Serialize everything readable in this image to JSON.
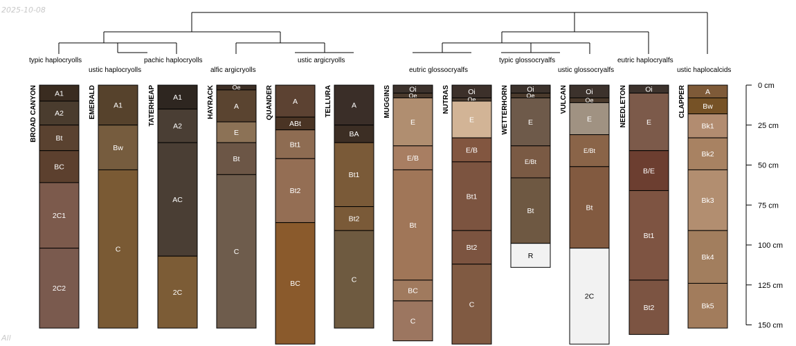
{
  "date_stamp": "2025-10-08",
  "footer_label": "All",
  "depth_axis": {
    "unit": "cm",
    "ticks": [
      0,
      25,
      50,
      75,
      100,
      125,
      150
    ],
    "tick_labels": [
      "0 cm",
      "25 cm",
      "50 cm",
      "75 cm",
      "100 cm",
      "125 cm",
      "150 cm"
    ]
  },
  "taxa": [
    "typic haplocryolls",
    "ustic haplocryolls",
    "pachic haplocryolls",
    "alfic argicryolls",
    "ustic argicryolls",
    "eutric glossocryalfs",
    "typic glossocryalfs",
    "ustic glossocryalfs",
    "eutric haplocryalfs",
    "ustic haplocalcids"
  ],
  "profiles": [
    {
      "name": "BROAD CANYON",
      "horizons": [
        {
          "name": "A1",
          "top": 0,
          "bottom": 10,
          "color": "#3a2c20"
        },
        {
          "name": "A2",
          "top": 10,
          "bottom": 25,
          "color": "#4a3c2e"
        },
        {
          "name": "Bt",
          "top": 25,
          "bottom": 41,
          "color": "#5a4230"
        },
        {
          "name": "BC",
          "top": 41,
          "bottom": 61,
          "color": "#5c402e"
        },
        {
          "name": "2C1",
          "top": 61,
          "bottom": 102,
          "color": "#7c5a4c"
        },
        {
          "name": "2C2",
          "top": 102,
          "bottom": 152,
          "color": "#7a5a4e"
        }
      ]
    },
    {
      "name": "EMERALD",
      "horizons": [
        {
          "name": "A1",
          "top": 0,
          "bottom": 25,
          "color": "#56422c"
        },
        {
          "name": "Bw",
          "top": 25,
          "bottom": 53,
          "color": "#765c3e"
        },
        {
          "name": "C",
          "top": 53,
          "bottom": 152,
          "color": "#7a5a34"
        }
      ]
    },
    {
      "name": "TATERHEAP",
      "horizons": [
        {
          "name": "A1",
          "top": 0,
          "bottom": 15,
          "color": "#2e2620"
        },
        {
          "name": "A2",
          "top": 15,
          "bottom": 36,
          "color": "#4a3e34"
        },
        {
          "name": "AC",
          "top": 36,
          "bottom": 107,
          "color": "#4a3e34"
        },
        {
          "name": "2C",
          "top": 107,
          "bottom": 152,
          "color": "#7c5c36"
        }
      ]
    },
    {
      "name": "HAYRACK",
      "horizons": [
        {
          "name": "Oe",
          "top": 0,
          "bottom": 3,
          "color": "#3c2e24"
        },
        {
          "name": "A",
          "top": 3,
          "bottom": 23,
          "color": "#5a4430"
        },
        {
          "name": "E",
          "top": 23,
          "bottom": 36,
          "color": "#8c7256"
        },
        {
          "name": "Bt",
          "top": 36,
          "bottom": 56,
          "color": "#6c5646"
        },
        {
          "name": "C",
          "top": 56,
          "bottom": 152,
          "color": "#6e5c4c"
        }
      ]
    },
    {
      "name": "QUANDER",
      "horizons": [
        {
          "name": "A",
          "top": 0,
          "bottom": 20,
          "color": "#5c4232"
        },
        {
          "name": "ABt",
          "top": 20,
          "bottom": 28,
          "color": "#4a3424"
        },
        {
          "name": "Bt1",
          "top": 28,
          "bottom": 46,
          "color": "#8e6c52"
        },
        {
          "name": "Bt2",
          "top": 46,
          "bottom": 86,
          "color": "#946e54"
        },
        {
          "name": "BC",
          "top": 86,
          "bottom": 162,
          "color": "#8a5a2c"
        }
      ]
    },
    {
      "name": "TELLURA",
      "horizons": [
        {
          "name": "A",
          "top": 0,
          "bottom": 25,
          "color": "#3a2e28"
        },
        {
          "name": "BA",
          "top": 25,
          "bottom": 36,
          "color": "#3c2e24"
        },
        {
          "name": "Bt1",
          "top": 36,
          "bottom": 76,
          "color": "#7a5a38"
        },
        {
          "name": "Bt2",
          "top": 76,
          "bottom": 91,
          "color": "#7a5a38"
        },
        {
          "name": "C",
          "top": 91,
          "bottom": 152,
          "color": "#6e5a40"
        }
      ]
    },
    {
      "name": "MUGGINS",
      "horizons": [
        {
          "name": "Oi",
          "top": 0,
          "bottom": 5,
          "color": "#3c322c"
        },
        {
          "name": "Oe",
          "top": 5,
          "bottom": 8,
          "color": "#4a3a2c"
        },
        {
          "name": "E",
          "top": 8,
          "bottom": 38,
          "color": "#b08e70"
        },
        {
          "name": "E/B",
          "top": 38,
          "bottom": 53,
          "color": "#a87e62"
        },
        {
          "name": "Bt",
          "top": 53,
          "bottom": 122,
          "color": "#a07658"
        },
        {
          "name": "BC",
          "top": 122,
          "bottom": 135,
          "color": "#a07a5e"
        },
        {
          "name": "C",
          "top": 135,
          "bottom": 160,
          "color": "#9c7660"
        }
      ]
    },
    {
      "name": "NUTRAS",
      "horizons": [
        {
          "name": "Oi",
          "top": 0,
          "bottom": 8,
          "color": "#3c302a"
        },
        {
          "name": "Oe",
          "top": 8,
          "bottom": 10,
          "color": "#4a3c30"
        },
        {
          "name": "E",
          "top": 10,
          "bottom": 33,
          "color": "#d2b496"
        },
        {
          "name": "E/B",
          "top": 33,
          "bottom": 48,
          "color": "#825640"
        },
        {
          "name": "Bt1",
          "top": 48,
          "bottom": 91,
          "color": "#7c5440"
        },
        {
          "name": "Bt2",
          "top": 91,
          "bottom": 112,
          "color": "#7c5440"
        },
        {
          "name": "C",
          "top": 112,
          "bottom": 162,
          "color": "#805a42"
        }
      ]
    },
    {
      "name": "WETTERHORN",
      "horizons": [
        {
          "name": "Oi",
          "top": 0,
          "bottom": 5,
          "color": "#3c322c"
        },
        {
          "name": "Oe",
          "top": 5,
          "bottom": 8,
          "color": "#4a3a2c"
        },
        {
          "name": "E",
          "top": 8,
          "bottom": 38,
          "color": "#6e5a4a"
        },
        {
          "name": "E/Bt",
          "top": 38,
          "bottom": 58,
          "color": "#7a5a44"
        },
        {
          "name": "Bt",
          "top": 58,
          "bottom": 99,
          "color": "#6e5842"
        },
        {
          "name": "R",
          "top": 99,
          "bottom": 114,
          "color": "#f2f2f2"
        }
      ]
    },
    {
      "name": "VULCAN",
      "horizons": [
        {
          "name": "Oi",
          "top": 0,
          "bottom": 8,
          "color": "#3c322c"
        },
        {
          "name": "Oe",
          "top": 8,
          "bottom": 11,
          "color": "#4a3a2c"
        },
        {
          "name": "E",
          "top": 11,
          "bottom": 31,
          "color": "#a09282"
        },
        {
          "name": "E/Bt",
          "top": 31,
          "bottom": 51,
          "color": "#8a6448"
        },
        {
          "name": "Bt",
          "top": 51,
          "bottom": 102,
          "color": "#825a40"
        },
        {
          "name": "2C",
          "top": 102,
          "bottom": 162,
          "color": "#f2f2f2"
        }
      ]
    },
    {
      "name": "NEEDLETON",
      "horizons": [
        {
          "name": "Oi",
          "top": 0,
          "bottom": 5,
          "color": "#3c322c"
        },
        {
          "name": "E",
          "top": 5,
          "bottom": 41,
          "color": "#7c5a4a"
        },
        {
          "name": "B/E",
          "top": 41,
          "bottom": 66,
          "color": "#6c3e30"
        },
        {
          "name": "Bt1",
          "top": 66,
          "bottom": 122,
          "color": "#7e5442"
        },
        {
          "name": "Bt2",
          "top": 122,
          "bottom": 156,
          "color": "#7c5442"
        }
      ]
    },
    {
      "name": "CLAPPER",
      "horizons": [
        {
          "name": "A",
          "top": 0,
          "bottom": 8,
          "color": "#7e5a38"
        },
        {
          "name": "Bw",
          "top": 8,
          "bottom": 18,
          "color": "#765226"
        },
        {
          "name": "Bk1",
          "top": 18,
          "bottom": 33,
          "color": "#b28c70"
        },
        {
          "name": "Bk2",
          "top": 33,
          "bottom": 53,
          "color": "#a88262"
        },
        {
          "name": "Bk3",
          "top": 53,
          "bottom": 91,
          "color": "#b28e70"
        },
        {
          "name": "Bk4",
          "top": 91,
          "bottom": 124,
          "color": "#a27e5e"
        },
        {
          "name": "Bk5",
          "top": 124,
          "bottom": 152,
          "color": "#a27c5c"
        }
      ]
    }
  ]
}
